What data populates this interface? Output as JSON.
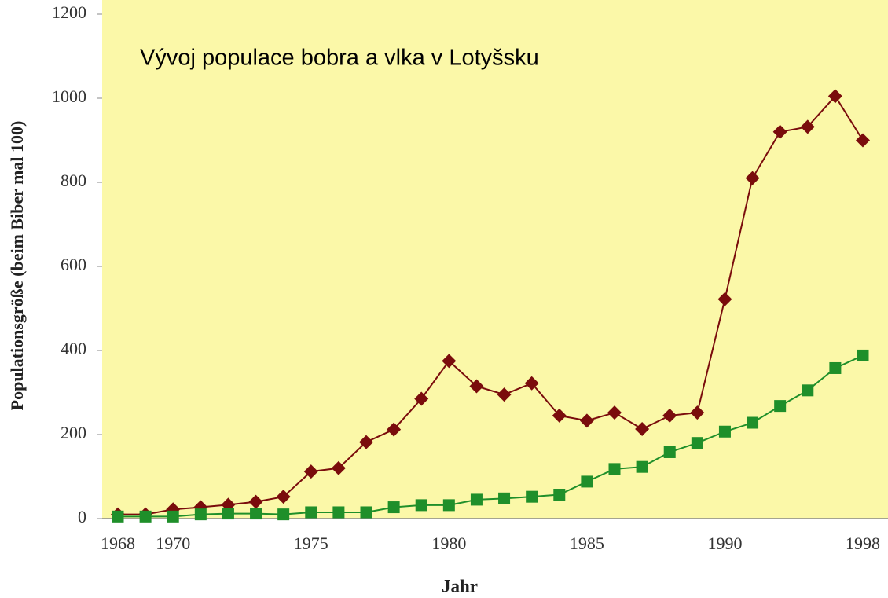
{
  "chart_data": {
    "type": "line",
    "title": "Vývoj populace bobra a vlka v Lotyšsku",
    "x_label": "Jahr",
    "y_label": "Populationsgröße (beim Biber mal 100)",
    "categories": [
      "1968",
      null,
      "1970",
      null,
      null,
      null,
      null,
      "1975",
      null,
      null,
      null,
      null,
      "1980",
      null,
      null,
      null,
      null,
      "1985",
      null,
      null,
      null,
      null,
      "1990",
      null,
      null,
      null,
      null,
      "1998"
    ],
    "series": [
      {
        "color": "#7a0c0c",
        "marker": "diamond",
        "values": [
          10,
          10,
          22,
          27,
          33,
          40,
          52,
          112,
          120,
          182,
          212,
          285,
          375,
          315,
          295,
          322,
          245,
          233,
          252,
          213,
          245,
          252,
          522,
          810,
          920,
          932,
          1005,
          900
        ]
      },
      {
        "color": "#1f8f2a",
        "marker": "square",
        "values": [
          5,
          5,
          5,
          10,
          12,
          12,
          10,
          15,
          15,
          15,
          27,
          32,
          32,
          45,
          48,
          52,
          57,
          88,
          118,
          123,
          158,
          180,
          207,
          228,
          268,
          305,
          358,
          388
        ]
      }
    ],
    "ylim": [
      0,
      1200
    ],
    "yticks": [
      0,
      200,
      400,
      600,
      800,
      1000,
      1200
    ],
    "background": "#fbf8a8"
  }
}
